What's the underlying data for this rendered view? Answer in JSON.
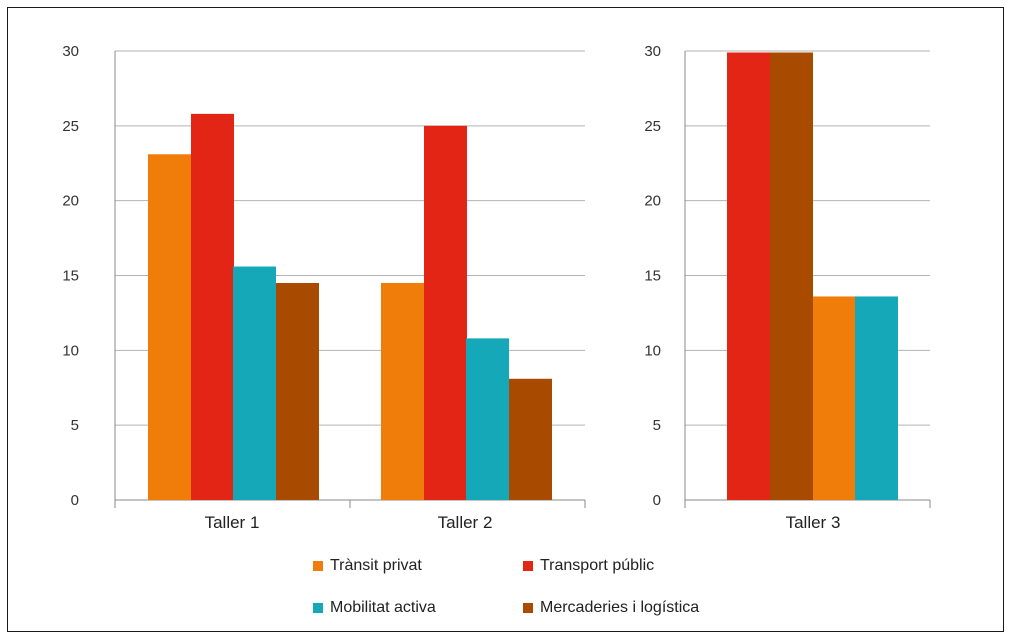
{
  "colors": {
    "Trànsit privat": "#f07d0a",
    "Transport públic": "#e32515",
    "Mobilitat activa": "#14a8b8",
    "Mercaderies i logística": "#a84a00"
  },
  "legend": [
    {
      "label": "Trànsit privat",
      "color": "#f07d0a"
    },
    {
      "label": "Transport públic",
      "color": "#e32515"
    },
    {
      "label": "Mobilitat activa",
      "color": "#14a8b8"
    },
    {
      "label": "Mercaderies i logística",
      "color": "#a84a00"
    }
  ],
  "chart_data": [
    {
      "type": "bar",
      "categories": [
        "Taller 1",
        "Taller 2"
      ],
      "ylim": [
        0,
        30
      ],
      "yticks": [
        "0",
        "5",
        "10",
        "15",
        "20",
        "25",
        "30"
      ],
      "series": [
        {
          "name": "Trànsit privat",
          "values": [
            23.1,
            14.5
          ]
        },
        {
          "name": "Transport públic",
          "values": [
            25.8,
            25.0
          ]
        },
        {
          "name": "Mobilitat activa",
          "values": [
            15.6,
            10.8
          ]
        },
        {
          "name": "Mercaderies i logística",
          "values": [
            14.5,
            8.1
          ]
        }
      ],
      "grid": true
    },
    {
      "type": "bar",
      "categories": [
        "Taller 3"
      ],
      "ylim": [
        0,
        30
      ],
      "yticks": [
        "0",
        "5",
        "10",
        "15",
        "20",
        "25",
        "30"
      ],
      "series": [
        {
          "name": "Transport públic",
          "values": [
            29.9
          ]
        },
        {
          "name": "Mercaderies i logística",
          "values": [
            29.9
          ]
        },
        {
          "name": "Trànsit privat",
          "values": [
            13.6
          ]
        },
        {
          "name": "Mobilitat activa",
          "values": [
            13.6
          ]
        }
      ],
      "grid": true
    }
  ]
}
